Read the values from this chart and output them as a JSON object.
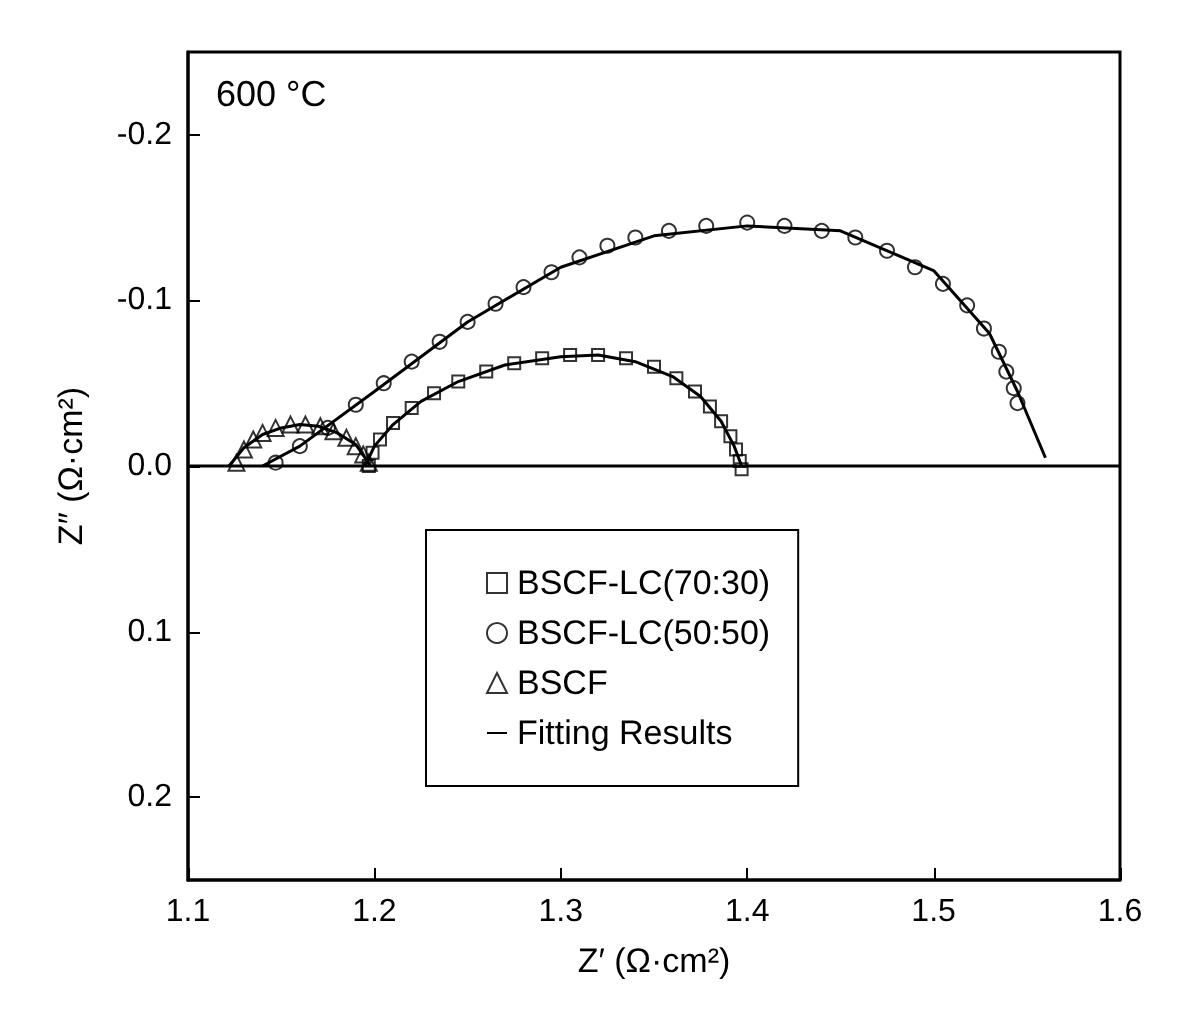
{
  "chart_data": {
    "type": "scatter",
    "xlabel": "Z′ (Ω·cm²)",
    "ylabel": "Z″ (Ω·cm²)",
    "annotations": [
      "600 °C"
    ],
    "xlim": [
      1.1,
      1.6
    ],
    "xticks": [
      1.1,
      1.2,
      1.3,
      1.4,
      1.5,
      1.6
    ],
    "ylim": [
      0.25,
      -0.25
    ],
    "yticks": [
      -0.2,
      -0.1,
      {
        "value": 0,
        "label": "0.0"
      },
      0.1,
      0.2
    ],
    "grid": false,
    "legend": "bottom",
    "ref_lines": [
      {
        "axis": "y",
        "value": 0,
        "color": "#000000",
        "line_style": "solid"
      }
    ],
    "series": [
      {
        "name": "BSCF-LC(70:30)",
        "color": "#000000",
        "marker": "square",
        "x": [
          1.197,
          1.199,
          1.203,
          1.21,
          1.22,
          1.232,
          1.245,
          1.26,
          1.275,
          1.29,
          1.305,
          1.32,
          1.335,
          1.35,
          1.362,
          1.372,
          1.38,
          1.386,
          1.391,
          1.394,
          1.396,
          1.397
        ],
        "values": [
          0.0,
          -0.008,
          -0.016,
          -0.026,
          -0.035,
          -0.044,
          -0.051,
          -0.057,
          -0.062,
          -0.065,
          -0.067,
          -0.067,
          -0.065,
          -0.06,
          -0.053,
          -0.045,
          -0.036,
          -0.027,
          -0.018,
          -0.01,
          -0.003,
          0.002
        ]
      },
      {
        "name": "BSCF-LC(50:50)",
        "color": "#000000",
        "marker": "circle",
        "x": [
          1.147,
          1.16,
          1.175,
          1.19,
          1.205,
          1.22,
          1.235,
          1.25,
          1.265,
          1.28,
          1.295,
          1.31,
          1.325,
          1.34,
          1.358,
          1.378,
          1.4,
          1.42,
          1.44,
          1.458,
          1.475,
          1.49,
          1.505,
          1.518,
          1.527,
          1.535,
          1.539,
          1.543,
          1.545
        ],
        "values": [
          -0.002,
          -0.012,
          -0.023,
          -0.037,
          -0.05,
          -0.063,
          -0.075,
          -0.087,
          -0.098,
          -0.108,
          -0.117,
          -0.126,
          -0.133,
          -0.138,
          -0.142,
          -0.145,
          -0.147,
          -0.145,
          -0.142,
          -0.138,
          -0.13,
          -0.12,
          -0.11,
          -0.097,
          -0.083,
          -0.069,
          -0.057,
          -0.047,
          -0.038
        ]
      },
      {
        "name": "BSCF",
        "color": "#000000",
        "marker": "triangle",
        "x": [
          1.126,
          1.13,
          1.135,
          1.14,
          1.147,
          1.155,
          1.163,
          1.171,
          1.178,
          1.185,
          1.19,
          1.194,
          1.197
        ],
        "values": [
          -0.002,
          -0.01,
          -0.016,
          -0.02,
          -0.023,
          -0.025,
          -0.025,
          -0.024,
          -0.021,
          -0.017,
          -0.012,
          -0.007,
          -0.002
        ]
      },
      {
        "name": "Fitting Results",
        "type": "line",
        "color": "#000000",
        "marker": "none",
        "line_style": "solid",
        "x": [
          1.122,
          1.13,
          1.14,
          1.15,
          1.16,
          1.17,
          1.18,
          1.19,
          1.198,
          null,
          1.195,
          1.2,
          1.21,
          1.225,
          1.245,
          1.27,
          1.3,
          1.32,
          1.34,
          1.36,
          1.375,
          1.386,
          1.393,
          1.397,
          null,
          1.14,
          1.16,
          1.2,
          1.25,
          1.3,
          1.35,
          1.4,
          1.45,
          1.5,
          1.53,
          1.545,
          1.56
        ],
        "values": [
          0,
          -0.011,
          -0.019,
          -0.023,
          -0.025,
          -0.024,
          -0.02,
          -0.013,
          0,
          null,
          0,
          -0.012,
          -0.025,
          -0.039,
          -0.051,
          -0.061,
          -0.066,
          -0.067,
          -0.063,
          -0.054,
          -0.042,
          -0.027,
          -0.012,
          0,
          null,
          0,
          -0.012,
          -0.045,
          -0.087,
          -0.12,
          -0.139,
          -0.145,
          -0.142,
          -0.118,
          -0.08,
          -0.045,
          -0.005
        ]
      }
    ]
  }
}
